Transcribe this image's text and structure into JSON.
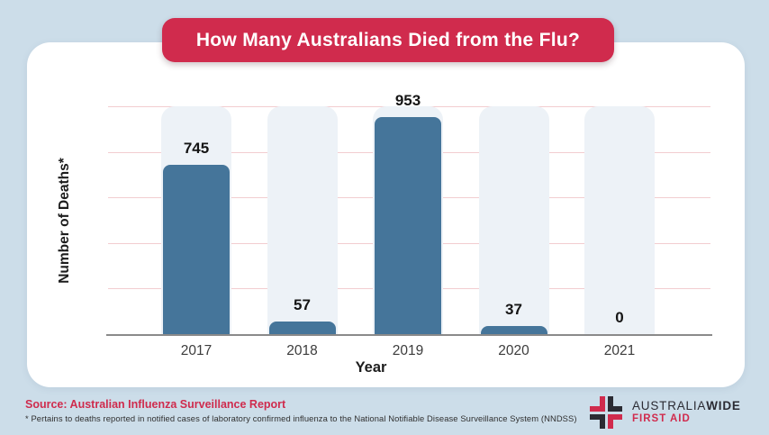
{
  "banner": {
    "title": "How Many Australians Died from the Flu?",
    "bg_color": "#d02b4d",
    "text_color": "#ffffff"
  },
  "chart_data": {
    "type": "bar",
    "categories": [
      "2017",
      "2018",
      "2019",
      "2020",
      "2021"
    ],
    "values": [
      745,
      57,
      953,
      37,
      0
    ],
    "title": "How Many Australians Died from the Flu?",
    "xlabel": "Year",
    "ylabel": "Number of Deaths*",
    "ylim": [
      0,
      1000
    ],
    "gridline_step": 200,
    "grid": "horizontal-only",
    "legend": "none",
    "bar_color": "#45759a",
    "track_color": "#edf2f7",
    "gridline_color": "#f2cdd0",
    "axis_color": "#8a8a8a"
  },
  "footer": {
    "source": "Source: Australian Influenza Surveillance Report",
    "source_color": "#cf2b4d",
    "footnote": "* Pertains to deaths reported in notified cases of laboratory confirmed influenza to the National Notifiable Disease Surveillance System (NNDSS)"
  },
  "logo": {
    "icon": "first-aid-cross-icon",
    "brand_primary": "AUSTRALIA",
    "brand_bold": "WIDE",
    "brand_sub": "FIRST AID",
    "dark_color": "#2b2b33",
    "red_color": "#d02b4d"
  }
}
